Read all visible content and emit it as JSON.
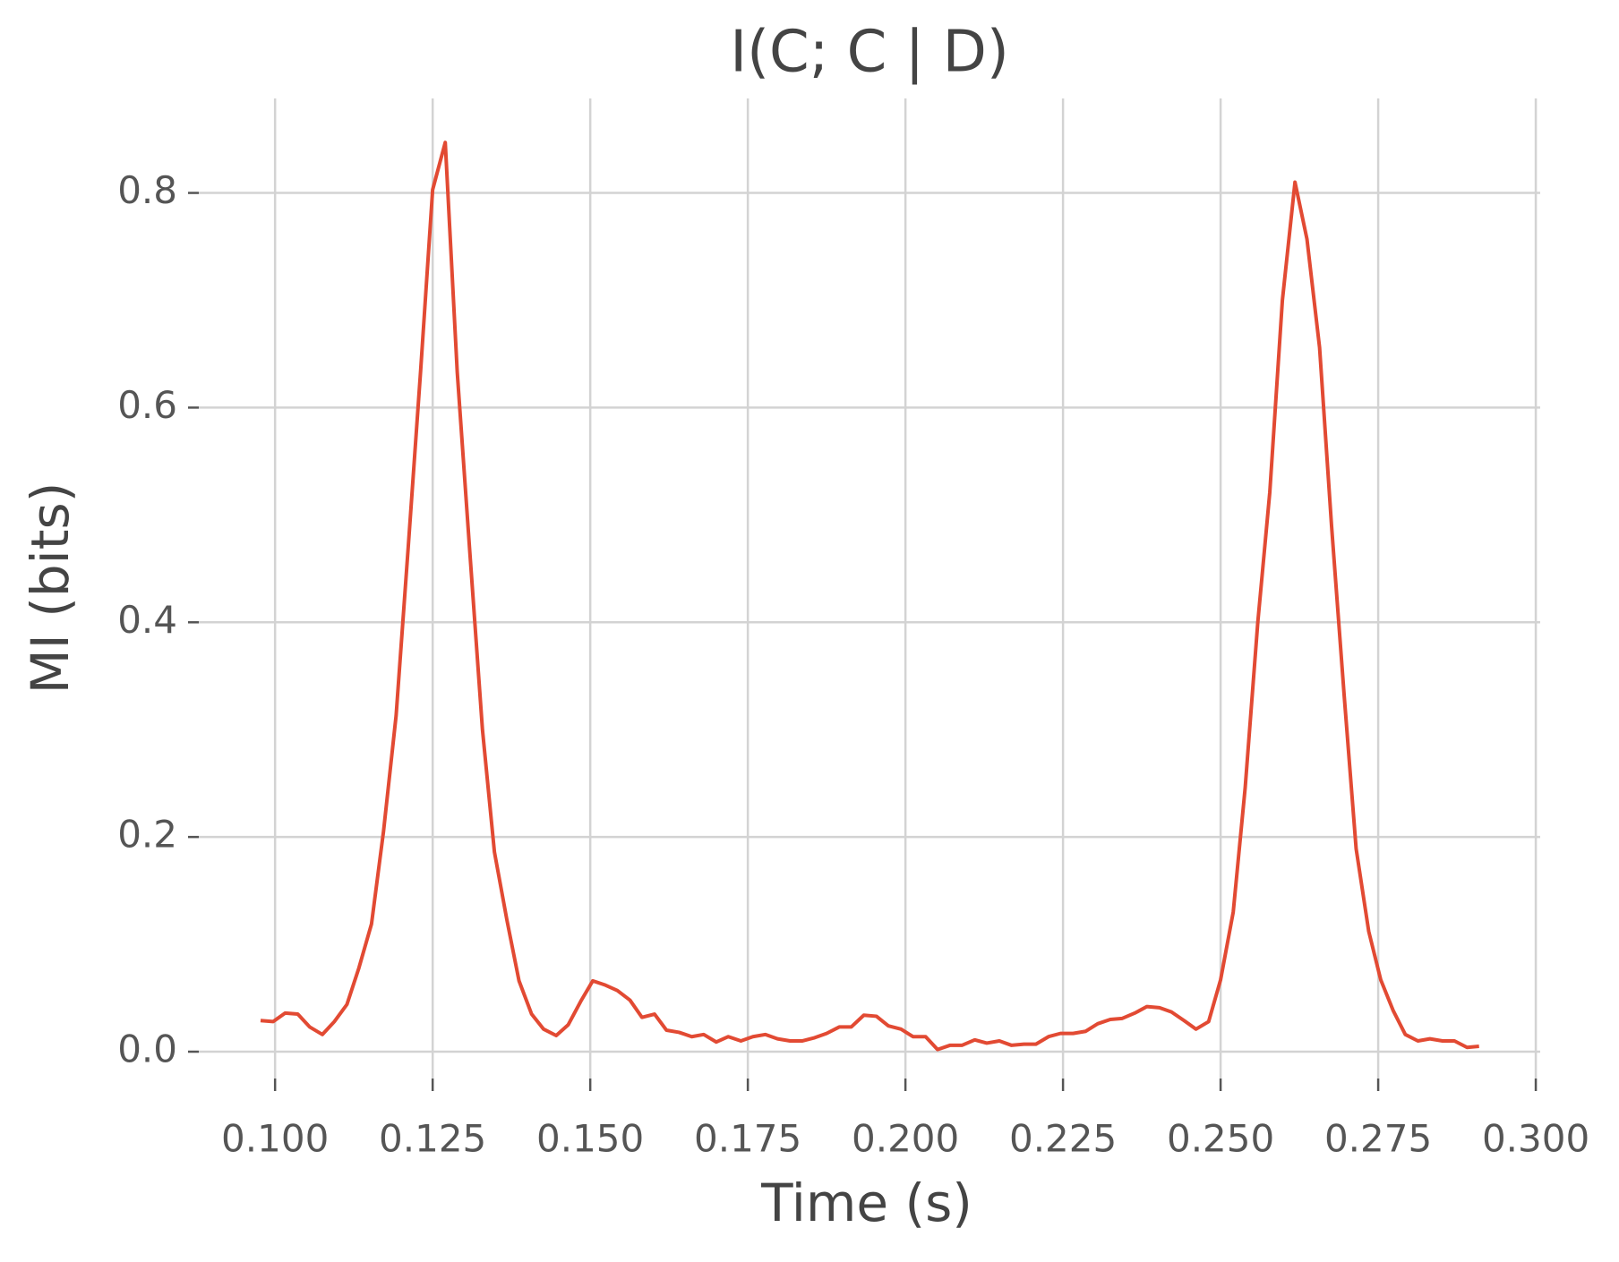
{
  "chart_data": {
    "type": "line",
    "title": "I(C; C | D)",
    "x_label": "Time (s)",
    "y_label": "MI (bits)",
    "grid": true,
    "x": [
      0.0977,
      0.0997,
      0.1016,
      0.1036,
      0.1055,
      0.1075,
      0.1094,
      0.1114,
      0.1133,
      0.1153,
      0.1172,
      0.1192,
      0.1211,
      0.1231,
      0.125,
      0.127,
      0.1289,
      0.1309,
      0.1329,
      0.1348,
      0.1368,
      0.1387,
      0.1407,
      0.1426,
      0.1446,
      0.1465,
      0.1485,
      0.1504,
      0.1524,
      0.1543,
      0.1563,
      0.1582,
      0.1602,
      0.1621,
      0.1641,
      0.1661,
      0.168,
      0.17,
      0.1719,
      0.1739,
      0.1758,
      0.1778,
      0.1797,
      0.1817,
      0.1836,
      0.1856,
      0.1875,
      0.1895,
      0.1914,
      0.1934,
      0.1954,
      0.1973,
      0.1993,
      0.2012,
      0.2032,
      0.2051,
      0.2071,
      0.209,
      0.211,
      0.2129,
      0.2149,
      0.2168,
      0.2188,
      0.2207,
      0.2227,
      0.2246,
      0.2266,
      0.2286,
      0.2305,
      0.2325,
      0.2344,
      0.2364,
      0.2383,
      0.2403,
      0.2422,
      0.2442,
      0.2461,
      0.2481,
      0.25,
      0.252,
      0.2539,
      0.2559,
      0.2578,
      0.2598,
      0.2618,
      0.2637,
      0.2657,
      0.2676,
      0.2696,
      0.2715,
      0.2735,
      0.2754,
      0.2774,
      0.2793,
      0.2813,
      0.2832,
      0.2852,
      0.2871,
      0.2891,
      0.291
    ],
    "series": [
      {
        "color": "#e24a33",
        "values": [
          0.029,
          0.028,
          0.036,
          0.035,
          0.023,
          0.016,
          0.028,
          0.044,
          0.078,
          0.119,
          0.205,
          0.313,
          0.468,
          0.635,
          0.803,
          0.847,
          0.633,
          0.465,
          0.3,
          0.186,
          0.122,
          0.066,
          0.035,
          0.021,
          0.015,
          0.025,
          0.047,
          0.066,
          0.062,
          0.057,
          0.048,
          0.032,
          0.035,
          0.02,
          0.018,
          0.014,
          0.016,
          0.009,
          0.014,
          0.01,
          0.014,
          0.016,
          0.012,
          0.01,
          0.01,
          0.013,
          0.017,
          0.023,
          0.023,
          0.034,
          0.033,
          0.024,
          0.021,
          0.014,
          0.014,
          0.002,
          0.006,
          0.006,
          0.011,
          0.008,
          0.01,
          0.006,
          0.007,
          0.007,
          0.014,
          0.017,
          0.017,
          0.019,
          0.026,
          0.03,
          0.031,
          0.036,
          0.042,
          0.041,
          0.037,
          0.029,
          0.021,
          0.028,
          0.067,
          0.13,
          0.246,
          0.4,
          0.521,
          0.7,
          0.81,
          0.757,
          0.656,
          0.49,
          0.332,
          0.189,
          0.112,
          0.067,
          0.038,
          0.016,
          0.01,
          0.012,
          0.01,
          0.01,
          0.004,
          0.005
        ]
      }
    ],
    "xlim": [
      0.0879,
      0.3007
    ],
    "ylim": [
      -0.025,
      0.888
    ],
    "xticks": [
      {
        "value": 0.1,
        "label": "0.100"
      },
      {
        "value": 0.125,
        "label": "0.125"
      },
      {
        "value": 0.15,
        "label": "0.150"
      },
      {
        "value": 0.175,
        "label": "0.175"
      },
      {
        "value": 0.2,
        "label": "0.200"
      },
      {
        "value": 0.225,
        "label": "0.225"
      },
      {
        "value": 0.25,
        "label": "0.250"
      },
      {
        "value": 0.275,
        "label": "0.275"
      },
      {
        "value": 0.3,
        "label": "0.300"
      }
    ],
    "yticks": [
      {
        "value": 0,
        "label": "0.0"
      },
      0.2,
      0.4,
      0.6,
      0.8
    ]
  }
}
